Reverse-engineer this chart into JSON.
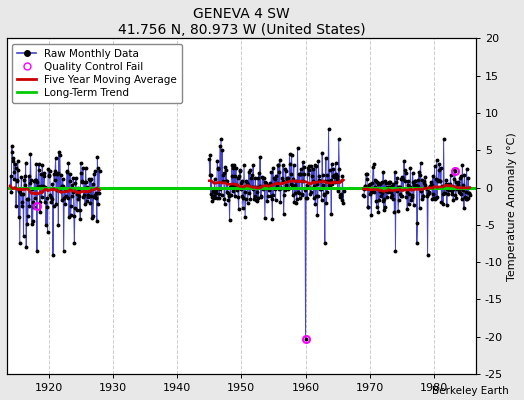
{
  "title": "GENEVA 4 SW",
  "subtitle": "41.756 N, 80.973 W (United States)",
  "ylabel_right": "Temperature Anomaly (°C)",
  "watermark": "Berkeley Earth",
  "xlim": [
    1913.5,
    1986.5
  ],
  "ylim": [
    -25,
    20
  ],
  "yticks": [
    -25,
    -20,
    -15,
    -10,
    -5,
    0,
    5,
    10,
    15,
    20
  ],
  "xticks": [
    1920,
    1930,
    1940,
    1950,
    1960,
    1970,
    1980
  ],
  "plot_bg_color": "#ffffff",
  "fig_bg_color": "#e8e8e8",
  "grid_color": "#cccccc",
  "raw_color": "#4444cc",
  "ma_color": "#cc0000",
  "trend_color": "#00cc00",
  "qc_color": "#ff00ff",
  "legend_items": [
    "Raw Monthly Data",
    "Quality Control Fail",
    "Five Year Moving Average",
    "Long-Term Trend"
  ],
  "qc_points": [
    [
      1918.25,
      -2.5
    ],
    [
      1960.0,
      -20.3
    ],
    [
      1983.3,
      2.2
    ]
  ],
  "seg1_start": 1914.0,
  "seg1_end": 1928.0,
  "seg2_start": 1945.0,
  "seg2_end": 1966.0,
  "seg3_start": 1969.0,
  "seg3_end": 1985.6
}
